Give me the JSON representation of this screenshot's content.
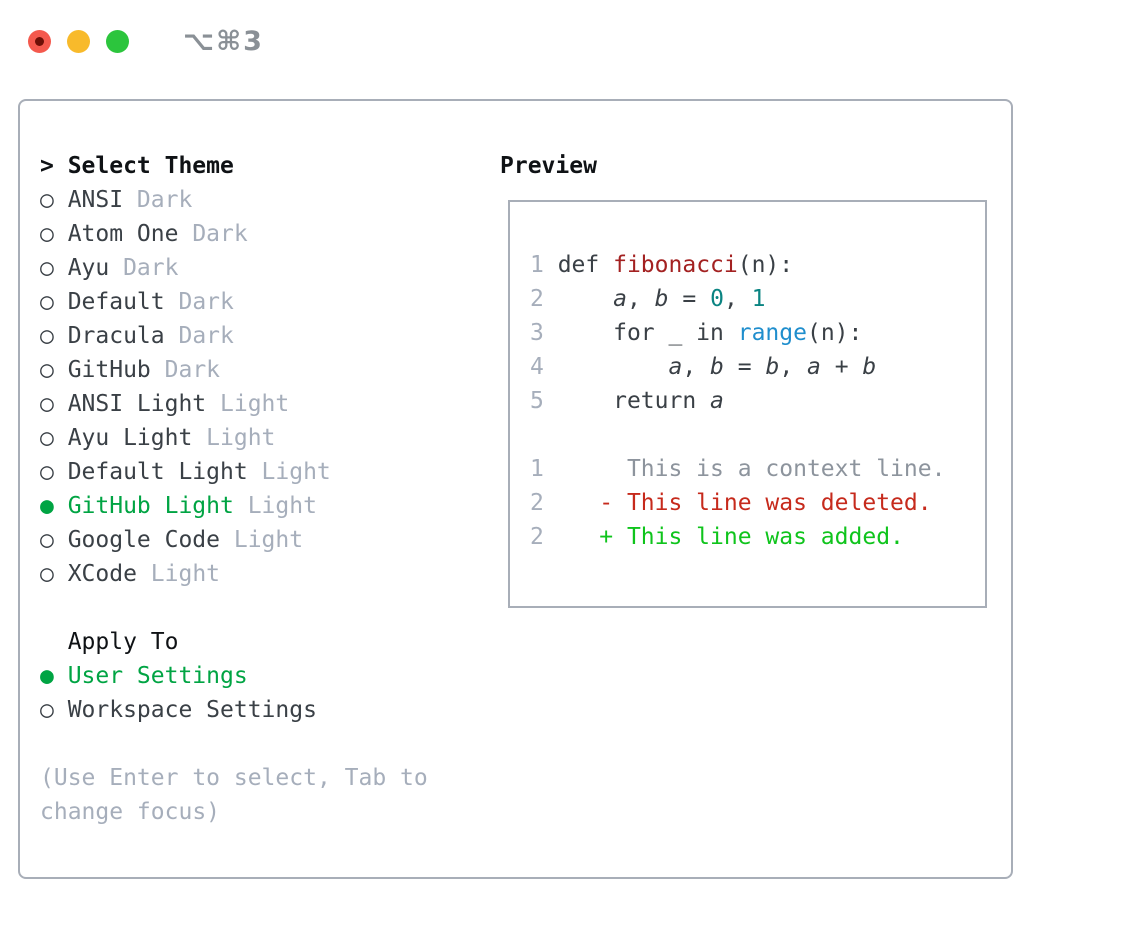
{
  "window": {
    "title_shortcut": "⌥⌘3",
    "traffic_lights": [
      "close",
      "minimize",
      "zoom"
    ]
  },
  "picker": {
    "header_marker": ">",
    "header_label": "Select Theme",
    "themes": [
      {
        "marker": "○",
        "name": "ANSI",
        "variant": "Dark",
        "selected": false
      },
      {
        "marker": "○",
        "name": "Atom One",
        "variant": "Dark",
        "selected": false
      },
      {
        "marker": "○",
        "name": "Ayu",
        "variant": "Dark",
        "selected": false
      },
      {
        "marker": "○",
        "name": "Default",
        "variant": "Dark",
        "selected": false
      },
      {
        "marker": "○",
        "name": "Dracula",
        "variant": "Dark",
        "selected": false
      },
      {
        "marker": "○",
        "name": "GitHub",
        "variant": "Dark",
        "selected": false
      },
      {
        "marker": "○",
        "name": "ANSI Light",
        "variant": "Light",
        "selected": false
      },
      {
        "marker": "○",
        "name": "Ayu Light",
        "variant": "Light",
        "selected": false
      },
      {
        "marker": "○",
        "name": "Default Light",
        "variant": "Light",
        "selected": false
      },
      {
        "marker": "●",
        "name": "GitHub Light",
        "variant": "Light",
        "selected": true
      },
      {
        "marker": "○",
        "name": "Google Code",
        "variant": "Light",
        "selected": false
      },
      {
        "marker": "○",
        "name": "XCode",
        "variant": "Light",
        "selected": false
      }
    ],
    "apply_to": {
      "label": "Apply To",
      "options": [
        {
          "marker": "●",
          "label": "User Settings",
          "selected": true
        },
        {
          "marker": "○",
          "label": "Workspace Settings",
          "selected": false
        }
      ]
    },
    "hint_line1": "(Use Enter to select, Tab to",
    "hint_line2": "change focus)"
  },
  "preview": {
    "label": "Preview",
    "code": [
      {
        "num": "1",
        "t1": " def ",
        "fn": "fibonacci",
        "t2": "(n):"
      },
      {
        "num": "2",
        "t1": "     ",
        "v1": "a",
        "t2": ", ",
        "v2": "b",
        "t3": " = ",
        "n1": "0",
        "t4": ", ",
        "n2": "1"
      },
      {
        "num": "3",
        "t1": "     for _ in ",
        "fn": "range",
        "t2": "(n):"
      },
      {
        "num": "4",
        "t1": "         ",
        "v1": "a",
        "t2": ", ",
        "v2": "b",
        "t3": " = ",
        "v3": "b",
        "t4": ", ",
        "v4": "a",
        "t5": " + ",
        "v5": "b"
      },
      {
        "num": "5",
        "t1": "     return ",
        "v1": "a"
      }
    ],
    "diff": [
      {
        "num": "1",
        "text": "      This is a context line.",
        "kind": "context"
      },
      {
        "num": "2",
        "text": "    - This line was deleted.",
        "kind": "deleted"
      },
      {
        "num": "2",
        "text": "    + This line was added.",
        "kind": "added"
      }
    ]
  },
  "colors": {
    "selected_green": "#00a443",
    "diff_added_green": "#0fc41c",
    "diff_deleted_red": "#c62a1c",
    "function_red": "#a32121",
    "builtin_blue": "#1f8ecd",
    "number_teal": "#0b8482",
    "muted_gray": "#a6aebb",
    "text_dark": "#3a4046",
    "border_gray": "#a8aeb8"
  }
}
